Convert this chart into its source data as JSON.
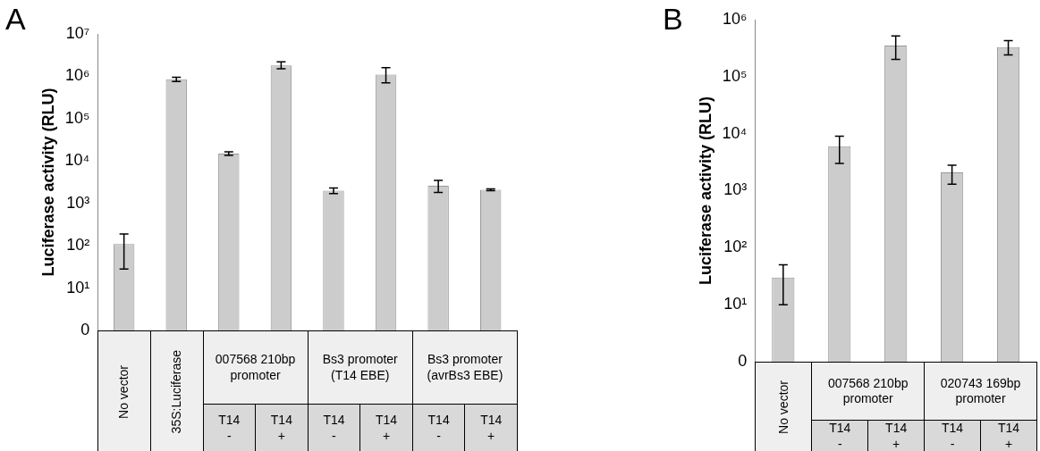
{
  "chart_data": [
    {
      "type": "bar",
      "title": "A",
      "ylabel": "Luciferase activity (RLU)",
      "categories": [
        null,
        null,
        "T14\n-",
        "T14\n+",
        "T14\n-",
        "T14\n+",
        "T14\n-",
        "T14\n+"
      ],
      "values": [
        110,
        850000,
        15000,
        1800000,
        2000,
        1100000,
        2600,
        2100
      ],
      "color": "#cccccc",
      "errors": [
        [
          28,
          190
        ],
        [
          750000,
          950000
        ],
        [
          13500,
          16500
        ],
        [
          1500000,
          2200000
        ],
        [
          1700,
          2300
        ],
        [
          700000,
          1600000
        ],
        [
          1800,
          3500
        ],
        [
          2000,
          2200
        ]
      ],
      "log": true,
      "ylim": [
        0,
        10000000
      ],
      "yticks": [
        0,
        {
          "value": 10,
          "label": "10¹"
        },
        {
          "value": 100,
          "label": "10²"
        },
        {
          "value": 1000,
          "label": "10³"
        },
        {
          "value": 10000,
          "label": "10⁴"
        },
        {
          "value": 100000,
          "label": "10⁵"
        },
        {
          "value": 1000000,
          "label": "10⁶"
        },
        {
          "value": 10000000,
          "label": "10⁷"
        }
      ],
      "annotations": [
        "No vector",
        "35S:Luciferase",
        "007568 210bp promoter",
        "Bs3 promoter (T14 EBE)",
        "Bs3 promoter (avrBs3 EBE)"
      ]
    },
    {
      "type": "bar",
      "title": "B",
      "ylabel": "Luciferase activity (RLU)",
      "categories": [
        null,
        "T14\n-",
        "T14\n+",
        "T14\n-",
        "T14\n+"
      ],
      "values": [
        30,
        6000,
        350000,
        2100,
        330000
      ],
      "color": "#cccccc",
      "errors": [
        [
          10,
          50
        ],
        [
          3000,
          9000
        ],
        [
          200000,
          520000
        ],
        [
          1300,
          2800
        ],
        [
          240000,
          430000
        ]
      ],
      "log": true,
      "ylim": [
        0,
        1000000
      ],
      "yticks": [
        0,
        {
          "value": 10,
          "label": "10¹"
        },
        {
          "value": 100,
          "label": "10²"
        },
        {
          "value": 1000,
          "label": "10³"
        },
        {
          "value": 10000,
          "label": "10⁴"
        },
        {
          "value": 100000,
          "label": "10⁵"
        },
        {
          "value": 1000000,
          "label": "10⁶"
        }
      ],
      "annotations": [
        "No vector",
        "007568 210bp promoter",
        "020743 169bp promoter"
      ]
    }
  ]
}
